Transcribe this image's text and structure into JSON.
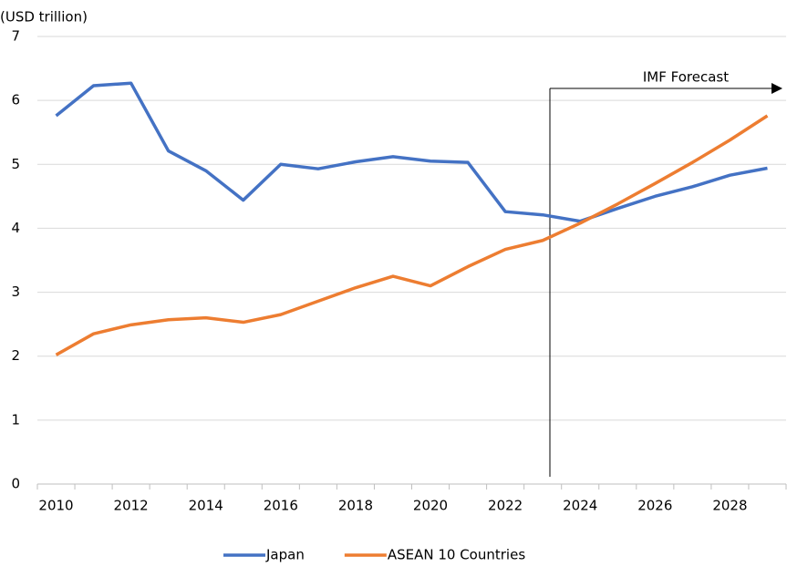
{
  "chart_data": {
    "type": "line",
    "y_axis_label": "(USD trillion)",
    "annotation": "IMF Forecast",
    "categories": [
      "2010",
      null,
      "2012",
      null,
      "2014",
      null,
      "2016",
      null,
      "2018",
      null,
      "2020",
      null,
      "2022",
      null,
      "2024",
      null,
      "2026",
      null,
      "2028",
      null
    ],
    "series": [
      {
        "name": "Japan",
        "color": "#4472c4",
        "values": [
          5.76,
          6.23,
          6.27,
          5.21,
          4.9,
          4.44,
          5.0,
          4.93,
          5.04,
          5.12,
          5.05,
          5.03,
          4.26,
          4.21,
          4.11,
          4.31,
          4.5,
          4.65,
          4.83,
          4.94
        ]
      },
      {
        "name": "ASEAN 10 Countries",
        "color": "#ed7d31",
        "values": [
          2.02,
          2.35,
          2.49,
          2.57,
          2.6,
          2.53,
          2.65,
          2.86,
          3.07,
          3.25,
          3.1,
          3.4,
          3.67,
          3.81,
          4.08,
          4.38,
          4.7,
          5.03,
          5.38,
          5.76
        ]
      }
    ],
    "ylim": [
      0,
      7
    ],
    "yticks": [
      0,
      1,
      2,
      3,
      4,
      5,
      6,
      7
    ],
    "grid": true,
    "legend": "bottom"
  }
}
